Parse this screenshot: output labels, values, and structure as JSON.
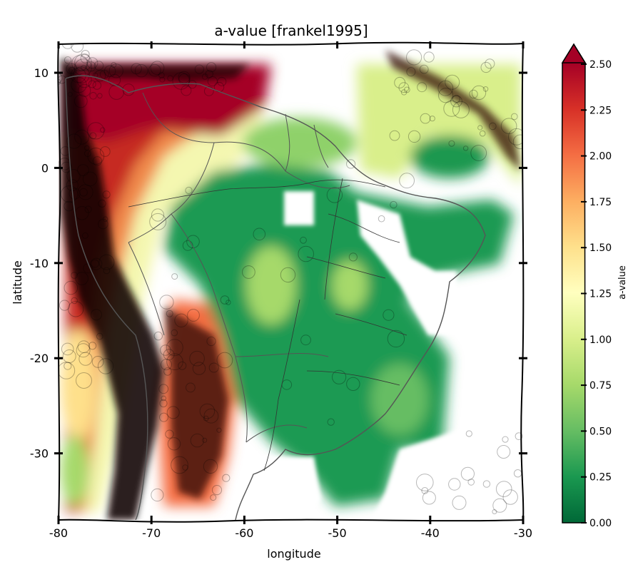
{
  "title": "a-value [frankel1995]",
  "axes": {
    "xlabel": "longitude",
    "ylabel": "latitude",
    "xlim": [
      -80,
      -30
    ],
    "ylim": [
      -37,
      13
    ],
    "x_ticks": [
      -80,
      -70,
      -60,
      -50,
      -40,
      -30
    ],
    "y_ticks": [
      10,
      0,
      -10,
      -20,
      -30
    ]
  },
  "colorbar": {
    "label": "a-value",
    "ticks": [
      "0.00",
      "0.25",
      "0.50",
      "0.75",
      "1.00",
      "1.25",
      "1.50",
      "1.75",
      "2.00",
      "2.25",
      "2.50"
    ],
    "extend": "max",
    "colormap": "RdYlGn_r",
    "colors": {
      "min": "#006837",
      "mid": "#ffffbf",
      "max": "#a50026"
    }
  },
  "map": {
    "region": "South America",
    "overlay": "earthquake epicenters (grey circles), country and state borders, rivers",
    "colors": {
      "border": "#555555",
      "river": "#333333",
      "quake": "#000000",
      "background": "#ffffff"
    }
  }
}
